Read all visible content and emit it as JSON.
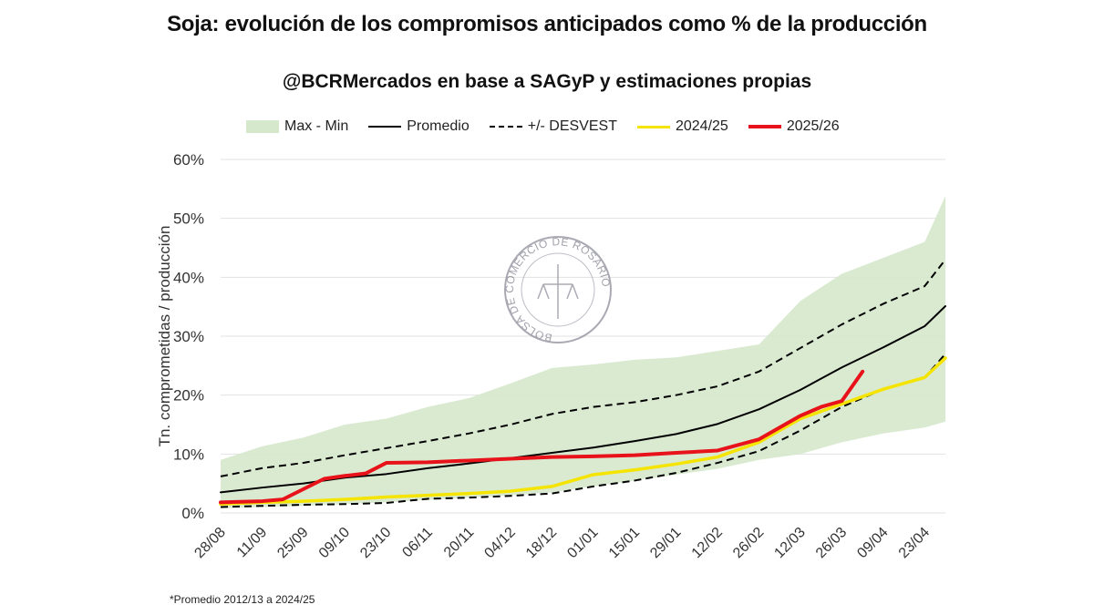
{
  "title": "Soja: evolución de los compromisos anticipados como % de la producción",
  "subtitle": "@BCRMercados en base a SAGyP y estimaciones propias",
  "footnote": "*Promedio 2012/13 a 2024/25",
  "watermark": "BOLSA DE COMERCIO DE ROSARIO",
  "chart_data": {
    "type": "line",
    "title": "Soja: evolución de los compromisos anticipados como % de la producción",
    "ylabel": "Tn. comprometidas / producción",
    "xlabel": "",
    "ylim": [
      0,
      60
    ],
    "yticks": [
      "0%",
      "10%",
      "20%",
      "30%",
      "40%",
      "50%",
      "60%"
    ],
    "xticks": [
      "28/08",
      "11/09",
      "25/09",
      "09/10",
      "23/10",
      "06/11",
      "20/11",
      "04/12",
      "18/12",
      "01/01",
      "15/01",
      "29/01",
      "12/02",
      "26/02",
      "12/03",
      "26/03",
      "09/04",
      "23/04"
    ],
    "grid": true,
    "legend_position": "top",
    "x": [
      "28/08",
      "11/09",
      "25/09",
      "09/10",
      "23/10",
      "06/11",
      "20/11",
      "04/12",
      "18/12",
      "01/01",
      "15/01",
      "29/01",
      "12/02",
      "26/02",
      "12/03",
      "26/03",
      "09/04",
      "23/04",
      "30/04"
    ],
    "band": {
      "name": "Max - Min",
      "color": "#d5e8cc",
      "max": [
        9,
        11.3,
        12.8,
        15,
        16,
        18,
        19.5,
        22,
        24.6,
        25.2,
        26,
        26.4,
        27.5,
        28.6,
        36,
        40.6,
        43.3,
        46,
        53.8
      ],
      "min": [
        0.8,
        1,
        1.2,
        1.5,
        1.8,
        2.2,
        2.6,
        3,
        3.5,
        4.5,
        5.5,
        6.5,
        7.5,
        9,
        10,
        12,
        13.5,
        14.5,
        15.5
      ]
    },
    "series": [
      {
        "name": "Promedio",
        "color": "#000000",
        "style": "solid",
        "values": [
          3.5,
          4.3,
          5,
          6,
          6.6,
          7.6,
          8.4,
          9.3,
          10.2,
          11.1,
          12.2,
          13.4,
          15.1,
          17.6,
          20.9,
          24.7,
          28.1,
          31.7,
          35.1
        ]
      },
      {
        "name": "+/- DESVEST",
        "color": "#000000",
        "style": "dashed",
        "values": [
          6.2,
          7.6,
          8.5,
          9.8,
          11,
          12.2,
          13.5,
          15,
          16.8,
          18,
          18.8,
          20,
          21.5,
          24,
          28,
          32,
          35.5,
          38.5,
          43
        ]
      },
      {
        "name": "",
        "legend": false,
        "color": "#000000",
        "style": "dashed",
        "values": [
          1,
          1.2,
          1.4,
          1.5,
          1.7,
          2.4,
          2.6,
          2.9,
          3.3,
          4.5,
          5.5,
          6.8,
          8.5,
          10.5,
          14,
          18,
          21,
          23,
          27
        ]
      },
      {
        "name": "2024/25",
        "color": "#f5e400",
        "style": "solid",
        "values": [
          1.5,
          1.8,
          2,
          2.3,
          2.7,
          3,
          3.3,
          3.7,
          4.5,
          6.5,
          7.3,
          8.3,
          9.5,
          12,
          16,
          18.5,
          21,
          23,
          26.3
        ]
      },
      {
        "name": "2025/26",
        "color": "#e8121a",
        "style": "solid",
        "x": [
          "28/08",
          "11/09",
          "18/09",
          "02/10",
          "09/10",
          "16/10",
          "23/10",
          "06/11",
          "20/11",
          "04/12",
          "18/12",
          "01/01",
          "15/01",
          "29/01",
          "12/02",
          "26/02",
          "12/03",
          "19/03",
          "26/03",
          "02/04"
        ],
        "values": [
          1.8,
          2,
          2.3,
          5.8,
          6.3,
          6.7,
          8.5,
          8.6,
          8.9,
          9.2,
          9.5,
          9.6,
          9.8,
          10.2,
          10.6,
          12.5,
          16.5,
          18,
          19,
          24
        ]
      }
    ]
  },
  "legend": [
    {
      "label": "Max - Min"
    },
    {
      "label": "Promedio"
    },
    {
      "label": "+/- DESVEST"
    },
    {
      "label": "2024/25"
    },
    {
      "label": "2025/26"
    }
  ]
}
